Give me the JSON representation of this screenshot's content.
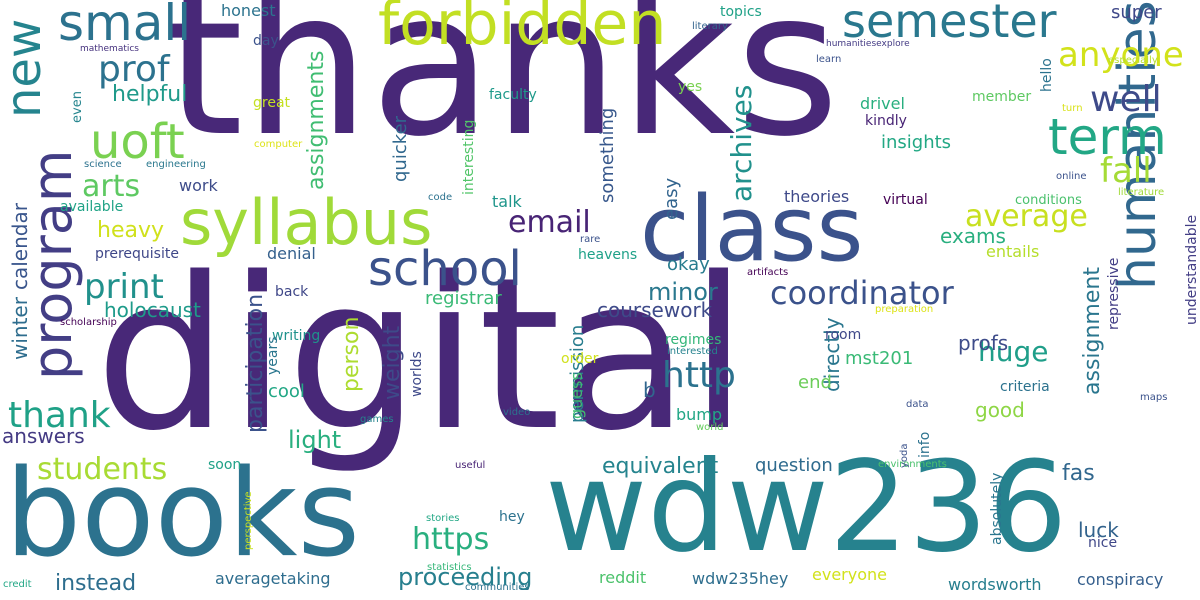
{
  "words": [
    {
      "text": "thanks",
      "color": "#482878"
    },
    {
      "text": "digital",
      "color": "#482878"
    },
    {
      "text": "books",
      "color": "#2c728e"
    },
    {
      "text": "wdw236",
      "color": "#26828e"
    },
    {
      "text": "class",
      "color": "#3b528b"
    },
    {
      "text": "syllabus",
      "color": "#a0da39"
    },
    {
      "text": "humanities",
      "color": "#31688e"
    },
    {
      "text": "program",
      "color": "#433e85"
    },
    {
      "text": "forbidden",
      "color": "#c2df23"
    },
    {
      "text": "semester",
      "color": "#2a788e"
    },
    {
      "text": "school",
      "color": "#3b528b"
    },
    {
      "text": "small",
      "color": "#2c728e"
    },
    {
      "text": "uoft",
      "color": "#7ad151"
    },
    {
      "text": "term",
      "color": "#22a785"
    },
    {
      "text": "new",
      "color": "#25848e"
    },
    {
      "text": "coordinator",
      "color": "#3b528b"
    },
    {
      "text": "print",
      "color": "#21918c"
    },
    {
      "text": "prof",
      "color": "#2c728e"
    },
    {
      "text": "anyone",
      "color": "#d2e21b"
    },
    {
      "text": "well",
      "color": "#3e4a89"
    },
    {
      "text": "http",
      "color": "#2c728e"
    },
    {
      "text": "fall",
      "color": "#a5db36"
    },
    {
      "text": "average",
      "color": "#c8e020"
    },
    {
      "text": "email",
      "color": "#482475"
    },
    {
      "text": "archives",
      "color": "#21918c"
    },
    {
      "text": "thank",
      "color": "#1fa187"
    },
    {
      "text": "arts",
      "color": "#5ec962"
    },
    {
      "text": "students",
      "color": "#a8db34"
    },
    {
      "text": "https",
      "color": "#29af7f"
    },
    {
      "text": "proceeding",
      "color": "#277f8e"
    },
    {
      "text": "equivalent",
      "color": "#25848e"
    },
    {
      "text": "coursework",
      "color": "#3e4a89"
    },
    {
      "text": "minor",
      "color": "#2a788e"
    },
    {
      "text": "huge",
      "color": "#1f9e89"
    },
    {
      "text": "assignments",
      "color": "#40bd72"
    },
    {
      "text": "participation",
      "color": "#3b528b"
    },
    {
      "text": "helpful",
      "color": "#1f9a8a"
    },
    {
      "text": "heavy",
      "color": "#d0e11c"
    },
    {
      "text": "answers",
      "color": "#443a83"
    },
    {
      "text": "instead",
      "color": "#2e6e8e"
    },
    {
      "text": "weight",
      "color": "#3e4a89"
    },
    {
      "text": "person",
      "color": "#addc30"
    },
    {
      "text": "profs",
      "color": "#3e4c8a"
    },
    {
      "text": "exams",
      "color": "#29af7f"
    },
    {
      "text": "luck",
      "color": "#33638d"
    },
    {
      "text": "fas",
      "color": "#31678e"
    },
    {
      "text": "good",
      "color": "#8ed645"
    },
    {
      "text": "assignment",
      "color": "#2a768e"
    },
    {
      "text": "winter",
      "color": "#2e6d8e"
    },
    {
      "text": "calendar",
      "color": "#39558c"
    },
    {
      "text": "holocaust",
      "color": "#1e9b8a"
    },
    {
      "text": "registrar",
      "color": "#3aba76"
    },
    {
      "text": "light",
      "color": "#29af7f"
    },
    {
      "text": "quicker",
      "color": "#31688e"
    },
    {
      "text": "something",
      "color": "#38588c"
    },
    {
      "text": "easy",
      "color": "#32648e"
    },
    {
      "text": "directly",
      "color": "#2a768e"
    },
    {
      "text": "permission",
      "color": "#287d8e"
    },
    {
      "text": "end",
      "color": "#6ccd5a"
    },
    {
      "text": "question",
      "color": "#2f6b8e"
    },
    {
      "text": "okay",
      "color": "#287c8e"
    },
    {
      "text": "b",
      "color": "#31678e"
    },
    {
      "text": "bump",
      "color": "#21a685"
    },
    {
      "text": "mst201",
      "color": "#3aba76"
    },
    {
      "text": "insights",
      "color": "#22a884"
    },
    {
      "text": "theories",
      "color": "#3e4989"
    },
    {
      "text": "drivel",
      "color": "#29af7f"
    },
    {
      "text": "super",
      "color": "#3f4889"
    },
    {
      "text": "entails",
      "color": "#b5de2b"
    },
    {
      "text": "cool",
      "color": "#22a785"
    },
    {
      "text": "talk",
      "color": "#1f968b"
    },
    {
      "text": "work",
      "color": "#3e4c8a"
    },
    {
      "text": "denial",
      "color": "#35608d"
    },
    {
      "text": "writing",
      "color": "#20928c"
    },
    {
      "text": "guess",
      "color": "#42be71"
    },
    {
      "text": "room",
      "color": "#3f4889"
    },
    {
      "text": "available",
      "color": "#20a386"
    },
    {
      "text": "prerequisite",
      "color": "#3f4788"
    },
    {
      "text": "averagetaking",
      "color": "#2e6d8e"
    },
    {
      "text": "wdw235hey",
      "color": "#2e6e8e"
    },
    {
      "text": "wordsworth",
      "color": "#277e8e"
    },
    {
      "text": "conspiracy",
      "color": "#355f8d"
    },
    {
      "text": "everyone",
      "color": "#d2e21b"
    },
    {
      "text": "reddit",
      "color": "#4cc26c"
    },
    {
      "text": "faculty",
      "color": "#1f9a8a"
    },
    {
      "text": "interesting",
      "color": "#52c569"
    },
    {
      "text": "honest",
      "color": "#2c738e"
    },
    {
      "text": "day",
      "color": "#3b528b"
    },
    {
      "text": "topics",
      "color": "#1fa187"
    },
    {
      "text": "literary",
      "color": "#33638d"
    },
    {
      "text": "especially",
      "color": "#b5de2b"
    },
    {
      "text": "humanitiesexplore",
      "color": "#443b84"
    },
    {
      "text": "learn",
      "color": "#3b528b"
    },
    {
      "text": "mathematics",
      "color": "#46327e"
    },
    {
      "text": "even",
      "color": "#25858e"
    },
    {
      "text": "great",
      "color": "#c5e021"
    },
    {
      "text": "yes",
      "color": "#7ad151"
    },
    {
      "text": "kindly",
      "color": "#482475"
    },
    {
      "text": "member",
      "color": "#5ec962"
    },
    {
      "text": "hello",
      "color": "#2c738e"
    },
    {
      "text": "turn",
      "color": "#d8e219"
    },
    {
      "text": "computer",
      "color": "#dde318"
    },
    {
      "text": "science",
      "color": "#2c728e"
    },
    {
      "text": "engineering",
      "color": "#2a788e"
    },
    {
      "text": "online",
      "color": "#3b528b"
    },
    {
      "text": "literature",
      "color": "#a0da39"
    },
    {
      "text": "code",
      "color": "#2c728e"
    },
    {
      "text": "rare",
      "color": "#3b528b"
    },
    {
      "text": "heavens",
      "color": "#1fa188"
    },
    {
      "text": "virtual",
      "color": "#440154"
    },
    {
      "text": "conditions",
      "color": "#4ac16d"
    },
    {
      "text": "repressive",
      "color": "#433e85"
    },
    {
      "text": "artifacts",
      "color": "#440154"
    },
    {
      "text": "scholarship",
      "color": "#440154"
    },
    {
      "text": "preparation",
      "color": "#dde318"
    },
    {
      "text": "regimes",
      "color": "#34b679"
    },
    {
      "text": "interested",
      "color": "#26828e"
    },
    {
      "text": "order",
      "color": "#d0e11c"
    },
    {
      "text": "criteria",
      "color": "#2c728e"
    },
    {
      "text": "understandable",
      "color": "#433e85"
    },
    {
      "text": "maps",
      "color": "#3b528b"
    },
    {
      "text": "data",
      "color": "#3b528b"
    },
    {
      "text": "years",
      "color": "#2a768e"
    },
    {
      "text": "worlds",
      "color": "#3e4989"
    },
    {
      "text": "games",
      "color": "#25848e"
    },
    {
      "text": "video",
      "color": "#2c728e"
    },
    {
      "text": "world",
      "color": "#65cb5e"
    },
    {
      "text": "back",
      "color": "#3f4788"
    },
    {
      "text": "soon",
      "color": "#1fa187"
    },
    {
      "text": "useful",
      "color": "#482475"
    },
    {
      "text": "environments",
      "color": "#4ac16d"
    },
    {
      "text": "info",
      "color": "#2c728e"
    },
    {
      "text": "absolutely",
      "color": "#2a768e"
    },
    {
      "text": "yoda",
      "color": "#3b528b"
    },
    {
      "text": "nice",
      "color": "#3f4788"
    },
    {
      "text": "hey",
      "color": "#2c728e"
    },
    {
      "text": "stories",
      "color": "#22a785"
    },
    {
      "text": "statistics",
      "color": "#35b779"
    },
    {
      "text": "perspective",
      "color": "#c8e020"
    },
    {
      "text": "credit",
      "color": "#22a785"
    },
    {
      "text": "communities",
      "color": "#2c728e"
    }
  ]
}
